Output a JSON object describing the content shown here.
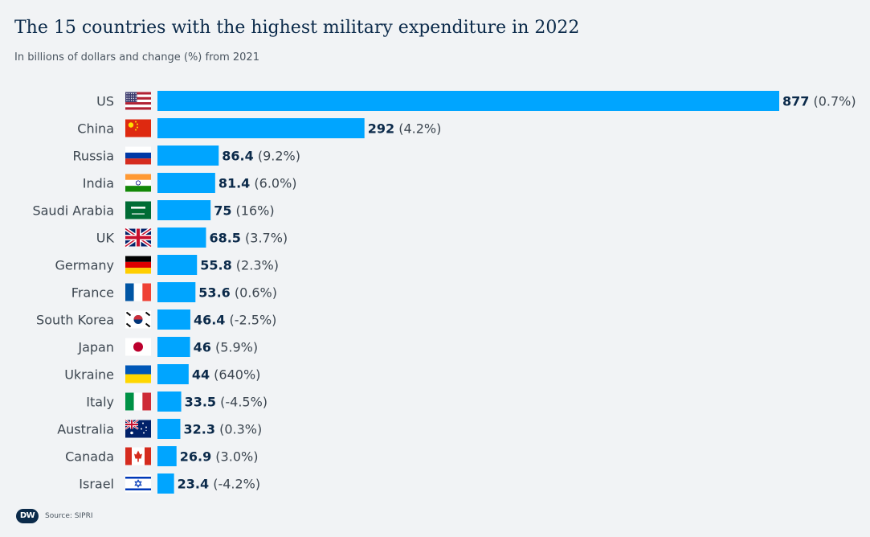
{
  "header": {
    "title": "The 15 countries with the highest military expenditure in 2022",
    "subtitle": "In billions of dollars and change (%) from 2021"
  },
  "footer": {
    "logo_text": "DW",
    "source": "Source: SIPRI"
  },
  "colors": {
    "bar": "#00a5ff",
    "value_text": "#0b2a4a",
    "background": "#f1f3f5"
  },
  "chart_data": {
    "type": "bar",
    "orientation": "horizontal",
    "title": "The 15 countries with the highest military expenditure in 2022",
    "subtitle": "In billions of dollars and change (%) from 2021",
    "xlabel": "",
    "ylabel": "",
    "grid": false,
    "xlim": [
      0,
      877
    ],
    "categories": [
      "US",
      "China",
      "Russia",
      "India",
      "Saudi Arabia",
      "UK",
      "Germany",
      "France",
      "South Korea",
      "Japan",
      "Ukraine",
      "Italy",
      "Australia",
      "Canada",
      "Israel"
    ],
    "values": [
      877,
      292,
      86.4,
      81.4,
      75,
      68.5,
      55.8,
      53.6,
      46.4,
      46,
      44,
      33.5,
      32.3,
      26.9,
      23.4
    ],
    "value_labels": [
      "877",
      "292",
      "86.4",
      "81.4",
      "75",
      "68.5",
      "55.8",
      "53.6",
      "46.4",
      "46",
      "44",
      "33.5",
      "32.3",
      "26.9",
      "23.4"
    ],
    "change_labels": [
      "(0.7%)",
      "(4.2%)",
      "(9.2%)",
      "(6.0%)",
      "(16%)",
      "(3.7%)",
      "(2.3%)",
      "(0.6%)",
      "(-2.5%)",
      "(5.9%)",
      "(640%)",
      "(-4.5%)",
      "(0.3%)",
      "(3.0%)",
      "(-4.2%)"
    ],
    "flags": [
      "us-flag",
      "china-flag",
      "russia-flag",
      "india-flag",
      "saudi-arabia-flag",
      "uk-flag",
      "germany-flag",
      "france-flag",
      "south-korea-flag",
      "japan-flag",
      "ukraine-flag",
      "italy-flag",
      "australia-flag",
      "canada-flag",
      "israel-flag"
    ]
  }
}
